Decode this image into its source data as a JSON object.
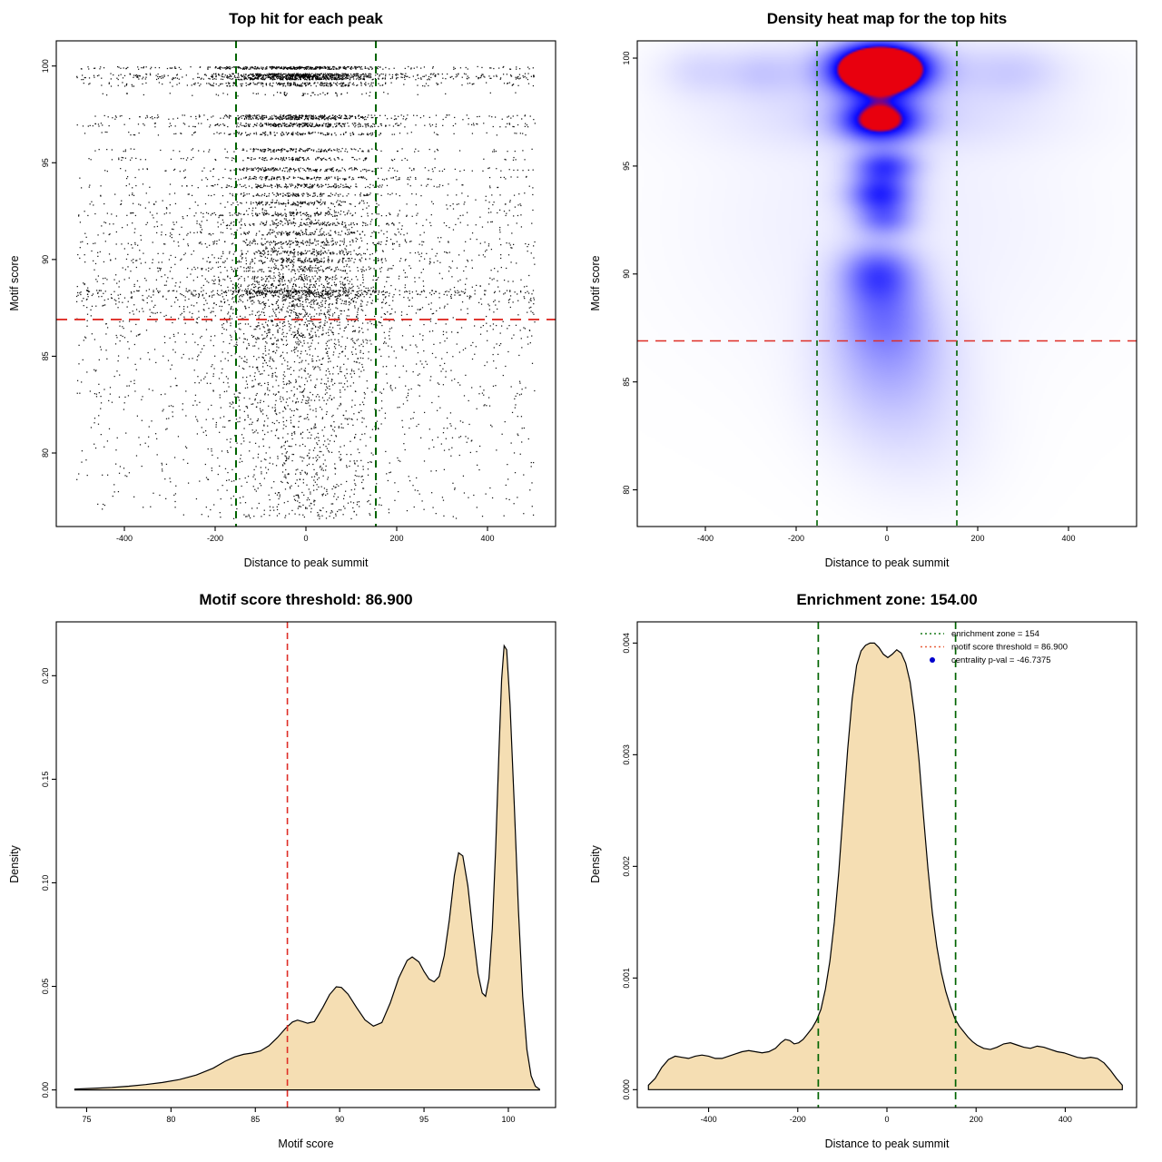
{
  "style": {
    "background": "#ffffff",
    "point_color": "#000000",
    "fill_wheat": "#f5deb3",
    "zone_green": "#006400",
    "threshold_red": "#de2d26",
    "pval_blue": "#0000cd",
    "heat_low": "#ffffff",
    "heat_mid": "#0808ff",
    "heat_high": "#e8000e"
  },
  "chart_data": [
    {
      "type": "scatter",
      "title": "Top hit for each peak",
      "xlabel": "Distance to peak summit",
      "ylabel": "Motif score",
      "xlim": [
        -550,
        550
      ],
      "ylim": [
        76.2,
        101.3
      ],
      "xticks": [
        -400,
        -200,
        0,
        200,
        400
      ],
      "yticks": [
        80,
        85,
        90,
        95,
        100
      ],
      "xtick_labels": [
        "-400",
        "-200",
        "0",
        "200",
        "400"
      ],
      "ytick_labels": [
        "80",
        "85",
        "90",
        "95",
        "100"
      ],
      "ref_lines": [
        {
          "dir": "v",
          "v": -154,
          "color": "#006400",
          "dash": [
            8,
            6
          ],
          "w": 2
        },
        {
          "dir": "v",
          "v": 154,
          "color": "#006400",
          "dash": [
            8,
            6
          ],
          "w": 2
        },
        {
          "dir": "h",
          "v": 86.9,
          "color": "#de2d26",
          "dash": [
            12,
            8
          ],
          "w": 1.8
        }
      ],
      "bands": [
        [
          99.9,
          420,
          0.07
        ],
        [
          99.45,
          1000,
          0.16
        ],
        [
          99.05,
          280,
          0.1
        ],
        [
          98.55,
          60,
          0.1
        ],
        [
          97.35,
          430,
          0.12
        ],
        [
          96.95,
          340,
          0.1
        ],
        [
          96.5,
          170,
          0.09
        ],
        [
          95.65,
          180,
          0.09
        ],
        [
          95.2,
          150,
          0.08
        ],
        [
          94.65,
          220,
          0.1
        ],
        [
          94.2,
          180,
          0.09
        ],
        [
          93.8,
          200,
          0.1
        ],
        [
          93.35,
          160,
          0.09
        ],
        [
          92.9,
          140,
          0.09
        ],
        [
          92.35,
          150,
          0.1
        ],
        [
          91.85,
          140,
          0.1
        ],
        [
          91.35,
          130,
          0.1
        ],
        [
          90.85,
          160,
          0.12
        ],
        [
          90.35,
          150,
          0.12
        ],
        [
          89.95,
          170,
          0.12
        ],
        [
          89.5,
          140,
          0.13
        ],
        [
          89.0,
          150,
          0.15
        ],
        [
          88.6,
          130,
          0.15
        ],
        [
          88.2,
          140,
          0.15
        ]
      ],
      "background_points": {
        "n": 3000,
        "ytop": 88.4,
        "ybottom": 76.6,
        "pow": 1.9
      },
      "filler_points": {
        "n": 700,
        "ymin": 88.4,
        "ymax": 93.1
      },
      "x_mixture": {
        "mu": -15,
        "sigma": 95,
        "range": [
          -505,
          505
        ],
        "center_frac_bands": 0.72,
        "center_frac_bg": 0.55
      }
    },
    {
      "type": "heatmap",
      "title": "Density heat map for the top hits",
      "xlabel": "Distance to peak summit",
      "ylabel": "Motif score",
      "xlim": [
        -550,
        550
      ],
      "ylim": [
        78.3,
        100.8
      ],
      "xticks": [
        -400,
        -200,
        0,
        200,
        400
      ],
      "yticks": [
        80,
        85,
        90,
        95,
        100
      ],
      "xtick_labels": [
        "-400",
        "-200",
        "0",
        "200",
        "400"
      ],
      "ytick_labels": [
        "80",
        "85",
        "90",
        "95",
        "100"
      ],
      "ref_lines": [
        {
          "dir": "v",
          "v": -154,
          "color": "#006400",
          "dash": [
            6,
            5
          ],
          "w": 1.6
        },
        {
          "dir": "v",
          "v": 154,
          "color": "#006400",
          "dash": [
            6,
            5
          ],
          "w": 1.6
        },
        {
          "dir": "h",
          "v": 86.9,
          "color": "#de2d26",
          "dash": [
            12,
            8
          ],
          "w": 1.6
        }
      ],
      "kernels": [
        {
          "x": -15,
          "y": 99.5,
          "sx": 70,
          "sy": 0.8,
          "a": 1.5
        },
        {
          "x": -15,
          "y": 97.1,
          "sx": 62,
          "sy": 0.7,
          "a": 0.8
        },
        {
          "x": -5,
          "y": 95.0,
          "sx": 52,
          "sy": 0.55,
          "a": 0.5
        },
        {
          "x": -15,
          "y": 93.7,
          "sx": 52,
          "sy": 0.6,
          "a": 0.55
        },
        {
          "x": -5,
          "y": 92.5,
          "sx": 48,
          "sy": 0.55,
          "a": 0.35
        },
        {
          "x": -20,
          "y": 90.1,
          "sx": 60,
          "sy": 0.95,
          "a": 0.42
        },
        {
          "x": -10,
          "y": 88.3,
          "sx": 75,
          "sy": 1.3,
          "a": 0.28
        },
        {
          "x": 5,
          "y": 86.4,
          "sx": 95,
          "sy": 1.6,
          "a": 0.18
        },
        {
          "x": 0,
          "y": 84.3,
          "sx": 115,
          "sy": 2.1,
          "a": 0.13
        },
        {
          "x": 0,
          "y": 99.4,
          "sx": 280,
          "sy": 1.2,
          "a": 0.16
        },
        {
          "x": 0,
          "y": 97.0,
          "sx": 280,
          "sy": 1.0,
          "a": 0.1
        },
        {
          "x": 0,
          "y": 92.5,
          "sx": 340,
          "sy": 5.5,
          "a": 0.09
        },
        {
          "x": -420,
          "y": 99.4,
          "sx": 60,
          "sy": 0.9,
          "a": 0.1
        },
        {
          "x": -280,
          "y": 99.3,
          "sx": 55,
          "sy": 0.8,
          "a": 0.1
        },
        {
          "x": 290,
          "y": 99.4,
          "sx": 70,
          "sy": 0.9,
          "a": 0.09
        },
        {
          "x": 80,
          "y": 81.8,
          "sx": 130,
          "sy": 2.4,
          "a": 0.07
        }
      ]
    },
    {
      "type": "density",
      "title": "Motif score threshold: 86.900",
      "xlabel": "Motif score",
      "ylabel": "Density",
      "xlim": [
        73.2,
        102.8
      ],
      "ylim": [
        -0.0085,
        0.226
      ],
      "xticks": [
        75,
        80,
        85,
        90,
        95,
        100
      ],
      "yticks": [
        0.0,
        0.05,
        0.1,
        0.15,
        0.2
      ],
      "xtick_labels": [
        "75",
        "80",
        "85",
        "90",
        "95",
        "100"
      ],
      "ytick_labels": [
        "0.00",
        "0.05",
        "0.10",
        "0.15",
        "0.20"
      ],
      "fill": "#f5deb3",
      "ref_lines": [
        {
          "dir": "v",
          "v": 86.9,
          "color": "#de2d26",
          "dash": [
            7,
            5
          ],
          "w": 1.6
        }
      ],
      "points": [
        [
          74.3,
          0.0004
        ],
        [
          75.5,
          0.0008
        ],
        [
          76.5,
          0.0012
        ],
        [
          77.5,
          0.0018
        ],
        [
          78.5,
          0.0026
        ],
        [
          79.5,
          0.0036
        ],
        [
          80.5,
          0.005
        ],
        [
          81.5,
          0.0072
        ],
        [
          82.5,
          0.0105
        ],
        [
          83.2,
          0.0138
        ],
        [
          83.8,
          0.016
        ],
        [
          84.3,
          0.0172
        ],
        [
          84.8,
          0.0178
        ],
        [
          85.3,
          0.0188
        ],
        [
          85.8,
          0.0213
        ],
        [
          86.3,
          0.0252
        ],
        [
          86.8,
          0.0298
        ],
        [
          87.2,
          0.0328
        ],
        [
          87.5,
          0.0337
        ],
        [
          87.8,
          0.033
        ],
        [
          88.1,
          0.0322
        ],
        [
          88.5,
          0.033
        ],
        [
          89.0,
          0.0398
        ],
        [
          89.4,
          0.046
        ],
        [
          89.8,
          0.0498
        ],
        [
          90.1,
          0.0495
        ],
        [
          90.5,
          0.0462
        ],
        [
          91.0,
          0.0398
        ],
        [
          91.5,
          0.0338
        ],
        [
          92.0,
          0.0308
        ],
        [
          92.5,
          0.0325
        ],
        [
          93.0,
          0.042
        ],
        [
          93.5,
          0.054
        ],
        [
          94.0,
          0.0625
        ],
        [
          94.3,
          0.0642
        ],
        [
          94.7,
          0.0618
        ],
        [
          95.0,
          0.0572
        ],
        [
          95.3,
          0.0535
        ],
        [
          95.6,
          0.0522
        ],
        [
          95.9,
          0.0548
        ],
        [
          96.2,
          0.0648
        ],
        [
          96.5,
          0.082
        ],
        [
          96.8,
          0.1035
        ],
        [
          97.05,
          0.1145
        ],
        [
          97.3,
          0.113
        ],
        [
          97.6,
          0.0985
        ],
        [
          97.9,
          0.0762
        ],
        [
          98.2,
          0.0562
        ],
        [
          98.45,
          0.0468
        ],
        [
          98.65,
          0.0452
        ],
        [
          98.85,
          0.0538
        ],
        [
          99.05,
          0.078
        ],
        [
          99.25,
          0.117
        ],
        [
          99.45,
          0.165
        ],
        [
          99.6,
          0.198
        ],
        [
          99.75,
          0.2145
        ],
        [
          99.9,
          0.2125
        ],
        [
          100.1,
          0.186
        ],
        [
          100.35,
          0.138
        ],
        [
          100.6,
          0.0865
        ],
        [
          100.85,
          0.0452
        ],
        [
          101.1,
          0.0195
        ],
        [
          101.35,
          0.0068
        ],
        [
          101.6,
          0.0018
        ],
        [
          101.85,
          0.0003
        ]
      ]
    },
    {
      "type": "density",
      "title": "Enrichment zone: 154.00",
      "xlabel": "Distance to peak summit",
      "ylabel": "Density",
      "xlim": [
        -560,
        560
      ],
      "ylim": [
        -0.00016,
        0.00419
      ],
      "xticks": [
        -400,
        -200,
        0,
        200,
        400
      ],
      "yticks": [
        0.0,
        0.001,
        0.002,
        0.003,
        0.004
      ],
      "xtick_labels": [
        "-400",
        "-200",
        "0",
        "200",
        "400"
      ],
      "ytick_labels": [
        "0.000",
        "0.001",
        "0.002",
        "0.003",
        "0.004"
      ],
      "fill": "#f5deb3",
      "ref_lines": [
        {
          "dir": "v",
          "v": -154,
          "color": "#006400",
          "dash": [
            8,
            6
          ],
          "w": 1.7
        },
        {
          "dir": "v",
          "v": 154,
          "color": "#006400",
          "dash": [
            8,
            6
          ],
          "w": 1.7
        }
      ],
      "legend": [
        {
          "marker": "line",
          "color": "#1a7a1a",
          "label": "enrichment zone = 154"
        },
        {
          "marker": "line",
          "color": "#e8613c",
          "label": "motif score threshold = 86.900"
        },
        {
          "marker": "dot",
          "color": "#0000cd",
          "label": "centrality p-val = -46.7375"
        }
      ],
      "points": [
        [
          -535,
          4e-05
        ],
        [
          -520,
          0.0001
        ],
        [
          -505,
          0.0002
        ],
        [
          -490,
          0.00027
        ],
        [
          -475,
          0.0003
        ],
        [
          -460,
          0.00029
        ],
        [
          -445,
          0.00028
        ],
        [
          -430,
          0.0003
        ],
        [
          -415,
          0.00031
        ],
        [
          -400,
          0.0003
        ],
        [
          -385,
          0.00028
        ],
        [
          -370,
          0.00028
        ],
        [
          -355,
          0.0003
        ],
        [
          -340,
          0.00032
        ],
        [
          -325,
          0.00034
        ],
        [
          -310,
          0.00035
        ],
        [
          -295,
          0.00034
        ],
        [
          -280,
          0.00033
        ],
        [
          -265,
          0.00034
        ],
        [
          -250,
          0.00037
        ],
        [
          -238,
          0.00042
        ],
        [
          -228,
          0.00045
        ],
        [
          -218,
          0.00044
        ],
        [
          -208,
          0.00041
        ],
        [
          -198,
          0.00042
        ],
        [
          -188,
          0.00045
        ],
        [
          -178,
          0.0005
        ],
        [
          -168,
          0.00055
        ],
        [
          -158,
          0.00062
        ],
        [
          -148,
          0.00072
        ],
        [
          -138,
          0.0009
        ],
        [
          -128,
          0.00115
        ],
        [
          -118,
          0.0015
        ],
        [
          -108,
          0.00195
        ],
        [
          -98,
          0.0025
        ],
        [
          -88,
          0.00305
        ],
        [
          -78,
          0.0035
        ],
        [
          -68,
          0.0038
        ],
        [
          -58,
          0.00393
        ],
        [
          -48,
          0.00398
        ],
        [
          -38,
          0.004
        ],
        [
          -28,
          0.004
        ],
        [
          -18,
          0.00396
        ],
        [
          -8,
          0.0039
        ],
        [
          2,
          0.00387
        ],
        [
          12,
          0.0039
        ],
        [
          22,
          0.00394
        ],
        [
          32,
          0.00391
        ],
        [
          42,
          0.00382
        ],
        [
          52,
          0.00365
        ],
        [
          62,
          0.00335
        ],
        [
          72,
          0.00295
        ],
        [
          82,
          0.00245
        ],
        [
          92,
          0.00198
        ],
        [
          102,
          0.00158
        ],
        [
          112,
          0.00128
        ],
        [
          122,
          0.00105
        ],
        [
          132,
          0.00088
        ],
        [
          142,
          0.00075
        ],
        [
          152,
          0.00064
        ],
        [
          162,
          0.00057
        ],
        [
          172,
          0.00052
        ],
        [
          182,
          0.00047
        ],
        [
          192,
          0.00043
        ],
        [
          202,
          0.0004
        ],
        [
          217,
          0.00037
        ],
        [
          232,
          0.00036
        ],
        [
          247,
          0.00038
        ],
        [
          262,
          0.00041
        ],
        [
          277,
          0.00042
        ],
        [
          292,
          0.0004
        ],
        [
          307,
          0.00038
        ],
        [
          322,
          0.00037
        ],
        [
          337,
          0.00039
        ],
        [
          352,
          0.00038
        ],
        [
          367,
          0.00036
        ],
        [
          382,
          0.00034
        ],
        [
          397,
          0.00033
        ],
        [
          412,
          0.00031
        ],
        [
          427,
          0.00029
        ],
        [
          442,
          0.00028
        ],
        [
          457,
          0.00029
        ],
        [
          472,
          0.00028
        ],
        [
          487,
          0.00024
        ],
        [
          502,
          0.00017
        ],
        [
          515,
          0.0001
        ],
        [
          528,
          4e-05
        ]
      ]
    }
  ]
}
